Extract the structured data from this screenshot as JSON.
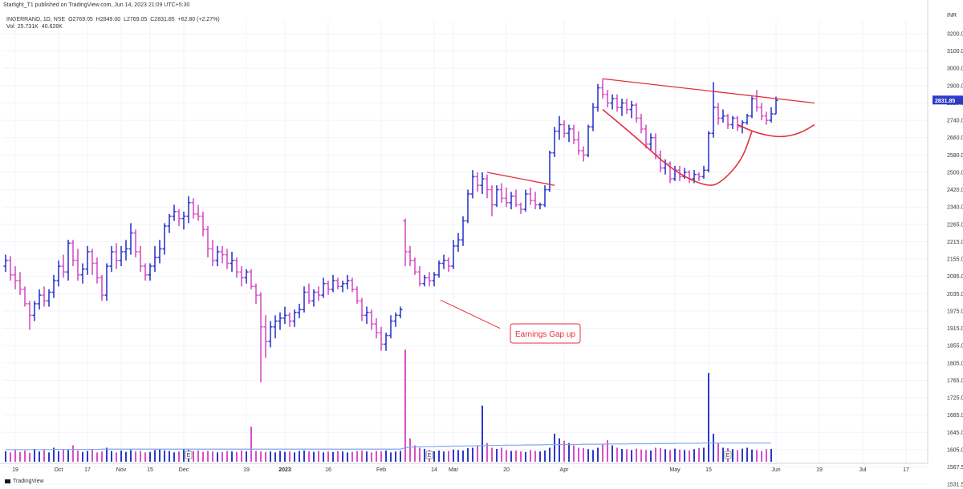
{
  "header": {
    "publish_line": "Starlight_T1 published on TradingView.com, Jun 14, 2023 21:09 UTC+5:30"
  },
  "legend": {
    "symbol": "INGERRAND, 1D, NSE",
    "open": "O2769.05",
    "high": "H2849.00",
    "low": "L2769.05",
    "close": "C2831.85",
    "change": "+62.80 (+2.27%)",
    "vol_label": "Vol",
    "vol_value": "25.731K",
    "vol_ma": "40.628K"
  },
  "footer": {
    "brand": "TradingView"
  },
  "colors": {
    "up": "#2e39c9",
    "down": "#d651c4",
    "trend": "#e3313d",
    "vol_ma": "#7ea9ee",
    "grid": "#f0f3fa"
  },
  "chart_data": {
    "type": "ohlc-bar",
    "currency": "INR",
    "price_axis": {
      "ticks": [
        3200,
        3100,
        3000,
        2900,
        2820,
        2740,
        2660,
        2580,
        2500,
        2420,
        2340,
        2265,
        2215,
        2155,
        2095,
        2035,
        1975,
        1915,
        1855,
        1805,
        1765,
        1725,
        1685,
        1645,
        1605,
        1567.5,
        1531.5
      ],
      "tick_labels": [
        "3200.00",
        "3100.00",
        "3000.00",
        "2900.00",
        "2820.00",
        "2740.00",
        "2660.00",
        "2580.00",
        "2500.00",
        "2420.00",
        "2340.00",
        "2265.00",
        "2215.00",
        "2155.00",
        "2095.00",
        "2035.00",
        "1975.00",
        "1915.00",
        "1855.00",
        "1805.00",
        "1765.00",
        "1725.00",
        "1685.00",
        "1645.00",
        "1605.00",
        "1567.50",
        "1531.50"
      ],
      "last_price": 2831.85,
      "last_price_label": "2831.85",
      "unit_label": "INR"
    },
    "time_axis": {
      "labels": [
        {
          "text": "19",
          "idx": 2
        },
        {
          "text": "Oct",
          "idx": 11
        },
        {
          "text": "17",
          "idx": 17
        },
        {
          "text": "Nov",
          "idx": 24
        },
        {
          "text": "15",
          "idx": 30
        },
        {
          "text": "Dec",
          "idx": 37
        },
        {
          "text": "19",
          "idx": 50
        },
        {
          "text": "2023",
          "idx": 58
        },
        {
          "text": "16",
          "idx": 67
        },
        {
          "text": "Feb",
          "idx": 78
        },
        {
          "text": "14",
          "idx": 89
        },
        {
          "text": "Mar",
          "idx": 93
        },
        {
          "text": "20",
          "idx": 104
        },
        {
          "text": "Apr",
          "idx": 116
        },
        {
          "text": "May",
          "idx": 139
        },
        {
          "text": "15",
          "idx": 146
        },
        {
          "text": "Jun",
          "idx": 160
        },
        {
          "text": "19",
          "idx": 169
        },
        {
          "text": "Jul",
          "idx": 178
        },
        {
          "text": "17",
          "idx": 187
        }
      ]
    },
    "bars": [
      [
        2130,
        2170,
        2110,
        2150
      ],
      [
        2150,
        2165,
        2080,
        2100
      ],
      [
        2100,
        2130,
        2050,
        2080
      ],
      [
        2080,
        2110,
        2030,
        2050
      ],
      [
        2050,
        2060,
        1990,
        2000
      ],
      [
        2000,
        2010,
        1910,
        1960
      ],
      [
        1960,
        2010,
        1940,
        2000
      ],
      [
        2000,
        2050,
        1980,
        2030
      ],
      [
        2030,
        2060,
        1990,
        2010
      ],
      [
        2010,
        2050,
        1990,
        2040
      ],
      [
        2040,
        2100,
        2020,
        2080
      ],
      [
        2080,
        2150,
        2060,
        2130
      ],
      [
        2130,
        2170,
        2090,
        2110
      ],
      [
        2110,
        2220,
        2080,
        2210
      ],
      [
        2210,
        2220,
        2130,
        2150
      ],
      [
        2150,
        2190,
        2080,
        2100
      ],
      [
        2100,
        2140,
        2070,
        2120
      ],
      [
        2120,
        2200,
        2100,
        2180
      ],
      [
        2180,
        2190,
        2100,
        2140
      ],
      [
        2140,
        2160,
        2070,
        2090
      ],
      [
        2090,
        2100,
        2010,
        2030
      ],
      [
        2030,
        2140,
        2010,
        2130
      ],
      [
        2130,
        2200,
        2110,
        2180
      ],
      [
        2180,
        2210,
        2120,
        2150
      ],
      [
        2150,
        2200,
        2130,
        2180
      ],
      [
        2180,
        2220,
        2150,
        2190
      ],
      [
        2190,
        2270,
        2170,
        2240
      ],
      [
        2240,
        2250,
        2160,
        2180
      ],
      [
        2180,
        2200,
        2110,
        2130
      ],
      [
        2130,
        2140,
        2080,
        2100
      ],
      [
        2100,
        2140,
        2080,
        2130
      ],
      [
        2130,
        2200,
        2110,
        2160
      ],
      [
        2160,
        2220,
        2140,
        2190
      ],
      [
        2190,
        2270,
        2170,
        2260
      ],
      [
        2260,
        2310,
        2240,
        2300
      ],
      [
        2300,
        2350,
        2280,
        2320
      ],
      [
        2320,
        2330,
        2260,
        2290
      ],
      [
        2290,
        2320,
        2250,
        2300
      ],
      [
        2300,
        2390,
        2270,
        2360
      ],
      [
        2360,
        2380,
        2290,
        2310
      ],
      [
        2310,
        2350,
        2280,
        2300
      ],
      [
        2300,
        2320,
        2230,
        2250
      ],
      [
        2250,
        2260,
        2160,
        2190
      ],
      [
        2190,
        2220,
        2130,
        2150
      ],
      [
        2150,
        2200,
        2130,
        2180
      ],
      [
        2180,
        2200,
        2140,
        2170
      ],
      [
        2170,
        2190,
        2120,
        2140
      ],
      [
        2140,
        2180,
        2110,
        2150
      ],
      [
        2150,
        2160,
        2090,
        2110
      ],
      [
        2110,
        2130,
        2060,
        2090
      ],
      [
        2090,
        2120,
        2070,
        2110
      ],
      [
        2110,
        2120,
        2050,
        2060
      ],
      [
        2060,
        2070,
        2000,
        2030
      ],
      [
        2030,
        2040,
        1760,
        1920
      ],
      [
        1920,
        1960,
        1820,
        1870
      ],
      [
        1870,
        1940,
        1850,
        1920
      ],
      [
        1920,
        1960,
        1880,
        1940
      ],
      [
        1940,
        1970,
        1910,
        1950
      ],
      [
        1950,
        1990,
        1930,
        1960
      ],
      [
        1960,
        1970,
        1920,
        1940
      ],
      [
        1940,
        1980,
        1920,
        1970
      ],
      [
        1970,
        2000,
        1950,
        1980
      ],
      [
        1980,
        2060,
        1970,
        2040
      ],
      [
        2040,
        2070,
        2000,
        2010
      ],
      [
        2010,
        2050,
        1990,
        2040
      ],
      [
        2040,
        2060,
        2010,
        2030
      ],
      [
        2030,
        2090,
        2020,
        2070
      ],
      [
        2070,
        2080,
        2030,
        2050
      ],
      [
        2050,
        2100,
        2040,
        2080
      ],
      [
        2080,
        2090,
        2050,
        2060
      ],
      [
        2060,
        2080,
        2040,
        2070
      ],
      [
        2070,
        2100,
        2050,
        2080
      ],
      [
        2080,
        2090,
        2040,
        2050
      ],
      [
        2050,
        2060,
        2000,
        2010
      ],
      [
        2010,
        2020,
        1940,
        1960
      ],
      [
        1960,
        1990,
        1930,
        1970
      ],
      [
        1970,
        1980,
        1910,
        1930
      ],
      [
        1930,
        1950,
        1880,
        1900
      ],
      [
        1900,
        1920,
        1840,
        1860
      ],
      [
        1860,
        1900,
        1840,
        1890
      ],
      [
        1890,
        1960,
        1880,
        1940
      ],
      [
        1940,
        1970,
        1920,
        1960
      ],
      [
        1960,
        1990,
        1950,
        1980
      ],
      [
        2280,
        2290,
        2130,
        2180
      ],
      [
        2180,
        2200,
        2130,
        2150
      ],
      [
        2150,
        2160,
        2100,
        2110
      ],
      [
        2110,
        2130,
        2060,
        2070
      ],
      [
        2070,
        2100,
        2060,
        2090
      ],
      [
        2090,
        2110,
        2060,
        2080
      ],
      [
        2080,
        2110,
        2060,
        2100
      ],
      [
        2100,
        2150,
        2090,
        2140
      ],
      [
        2140,
        2170,
        2120,
        2150
      ],
      [
        2150,
        2160,
        2110,
        2130
      ],
      [
        2130,
        2220,
        2120,
        2200
      ],
      [
        2200,
        2240,
        2180,
        2220
      ],
      [
        2220,
        2300,
        2200,
        2280
      ],
      [
        2280,
        2420,
        2270,
        2400
      ],
      [
        2400,
        2510,
        2380,
        2480
      ],
      [
        2480,
        2500,
        2410,
        2440
      ],
      [
        2440,
        2500,
        2400,
        2470
      ],
      [
        2470,
        2490,
        2380,
        2420
      ],
      [
        2420,
        2440,
        2300,
        2350
      ],
      [
        2350,
        2440,
        2340,
        2420
      ],
      [
        2420,
        2450,
        2360,
        2380
      ],
      [
        2380,
        2430,
        2340,
        2360
      ],
      [
        2360,
        2410,
        2330,
        2390
      ],
      [
        2390,
        2420,
        2340,
        2350
      ],
      [
        2350,
        2360,
        2310,
        2330
      ],
      [
        2330,
        2420,
        2320,
        2400
      ],
      [
        2400,
        2430,
        2350,
        2370
      ],
      [
        2370,
        2410,
        2330,
        2350
      ],
      [
        2350,
        2360,
        2330,
        2350
      ],
      [
        2350,
        2440,
        2340,
        2420
      ],
      [
        2420,
        2600,
        2410,
        2590
      ],
      [
        2590,
        2710,
        2570,
        2690
      ],
      [
        2690,
        2760,
        2650,
        2720
      ],
      [
        2720,
        2740,
        2660,
        2680
      ],
      [
        2680,
        2720,
        2640,
        2700
      ],
      [
        2700,
        2720,
        2630,
        2650
      ],
      [
        2650,
        2690,
        2580,
        2600
      ],
      [
        2600,
        2620,
        2550,
        2580
      ],
      [
        2580,
        2720,
        2570,
        2710
      ],
      [
        2710,
        2820,
        2690,
        2800
      ],
      [
        2800,
        2910,
        2780,
        2890
      ],
      [
        2890,
        2940,
        2840,
        2860
      ],
      [
        2860,
        2880,
        2800,
        2820
      ],
      [
        2820,
        2860,
        2790,
        2840
      ],
      [
        2840,
        2860,
        2780,
        2800
      ],
      [
        2800,
        2840,
        2760,
        2820
      ],
      [
        2820,
        2840,
        2770,
        2790
      ],
      [
        2790,
        2830,
        2750,
        2810
      ],
      [
        2810,
        2820,
        2730,
        2750
      ],
      [
        2750,
        2770,
        2680,
        2700
      ],
      [
        2700,
        2720,
        2610,
        2630
      ],
      [
        2630,
        2680,
        2600,
        2660
      ],
      [
        2660,
        2680,
        2560,
        2580
      ],
      [
        2580,
        2600,
        2500,
        2520
      ],
      [
        2520,
        2560,
        2490,
        2540
      ],
      [
        2540,
        2550,
        2450,
        2470
      ],
      [
        2470,
        2530,
        2460,
        2510
      ],
      [
        2510,
        2530,
        2460,
        2480
      ],
      [
        2480,
        2520,
        2470,
        2500
      ],
      [
        2500,
        2510,
        2450,
        2470
      ],
      [
        2470,
        2510,
        2450,
        2490
      ],
      [
        2490,
        2500,
        2460,
        2480
      ],
      [
        2480,
        2530,
        2470,
        2510
      ],
      [
        2510,
        2690,
        2500,
        2680
      ],
      [
        2680,
        2920,
        2660,
        2800
      ],
      [
        2800,
        2820,
        2720,
        2750
      ],
      [
        2750,
        2790,
        2730,
        2760
      ],
      [
        2760,
        2770,
        2700,
        2720
      ],
      [
        2720,
        2760,
        2700,
        2750
      ],
      [
        2750,
        2760,
        2690,
        2710
      ],
      [
        2710,
        2740,
        2680,
        2730
      ],
      [
        2730,
        2770,
        2720,
        2760
      ],
      [
        2760,
        2850,
        2750,
        2840
      ],
      [
        2840,
        2880,
        2780,
        2800
      ],
      [
        2800,
        2820,
        2740,
        2760
      ],
      [
        2760,
        2780,
        2720,
        2740
      ],
      [
        2740,
        2800,
        2730,
        2770
      ],
      [
        2769.05,
        2849,
        2769.05,
        2831.85
      ]
    ],
    "volume": [
      45,
      40,
      50,
      42,
      48,
      38,
      55,
      44,
      50,
      40,
      60,
      45,
      52,
      50,
      70,
      48,
      42,
      46,
      55,
      40,
      44,
      60,
      46,
      40,
      48,
      42,
      50,
      44,
      46,
      40,
      42,
      50,
      52,
      48,
      46,
      40,
      44,
      55,
      50,
      46,
      48,
      42,
      46,
      44,
      40,
      42,
      46,
      44,
      42,
      48,
      44,
      150,
      46,
      44,
      42,
      44,
      40,
      46,
      42,
      44,
      40,
      46,
      48,
      44,
      42,
      46,
      40,
      44,
      42,
      46,
      44,
      40,
      42,
      46,
      48,
      44,
      40,
      46,
      44,
      48,
      40,
      44,
      46,
      480,
      100,
      70,
      60,
      55,
      50,
      45,
      48,
      44,
      46,
      52,
      50,
      48,
      58,
      60,
      70,
      240,
      80,
      60,
      55,
      60,
      50,
      46,
      48,
      44,
      42,
      50,
      46,
      44,
      48,
      60,
      120,
      100,
      90,
      80,
      70,
      60,
      58,
      54,
      50,
      60,
      75,
      92,
      70,
      60,
      55,
      54,
      50,
      56,
      52,
      50,
      48,
      60,
      58,
      54,
      50,
      56,
      52,
      50,
      48,
      54,
      58,
      60,
      380,
      120,
      80,
      60,
      58,
      54,
      50,
      56,
      60,
      52,
      50,
      46,
      54,
      55
    ],
    "volume_ma": [
      52,
      52,
      52,
      52,
      52,
      52,
      52,
      52,
      52,
      52,
      53,
      53,
      53,
      53,
      53,
      53,
      53,
      53,
      53,
      53,
      54,
      54,
      54,
      54,
      54,
      54,
      54,
      54,
      54,
      54,
      54,
      54,
      54,
      54,
      54,
      54,
      54,
      54,
      54,
      54,
      54,
      54,
      54,
      54,
      54,
      54,
      54,
      54,
      54,
      54,
      54,
      54,
      54,
      54,
      54,
      54,
      54,
      54,
      54,
      54,
      54,
      54,
      54,
      54,
      54,
      54,
      54,
      54,
      54,
      54,
      54,
      54,
      54,
      54,
      54,
      54,
      54,
      54,
      54,
      54,
      54,
      54,
      54,
      60,
      62,
      63,
      64,
      64,
      65,
      65,
      66,
      66,
      66,
      67,
      67,
      67,
      68,
      68,
      68,
      69,
      69,
      70,
      70,
      70,
      71,
      71,
      71,
      71,
      72,
      72,
      72,
      72,
      73,
      73,
      73,
      73,
      74,
      74,
      74,
      74,
      75,
      75,
      75,
      75,
      75,
      76,
      76,
      76,
      76,
      76,
      77,
      77,
      77,
      77,
      77,
      78,
      78,
      78,
      78,
      78,
      79,
      79,
      79,
      79,
      79,
      80,
      80,
      80,
      80,
      80,
      80,
      80,
      80,
      80,
      80,
      80,
      80,
      80,
      80,
      80
    ],
    "volume_axis": {
      "max": 480
    },
    "earnings_markers": [
      {
        "idx": 38,
        "text": "E"
      },
      {
        "idx": 88,
        "text": "E"
      },
      {
        "idx": 150,
        "text": "E"
      }
    ],
    "annotations": {
      "callout_text": "Earnings Gap up",
      "gap_arrow": {
        "from": {
          "idx": 96,
          "price": 1915
        },
        "to": {
          "idx": 88,
          "price": 2035
        }
      },
      "trend_lines": [
        {
          "from": {
            "idx": 100,
            "price": 2500
          },
          "to": {
            "idx": 114,
            "price": 2440
          }
        },
        {
          "from": {
            "idx": 124,
            "price": 2940
          },
          "to": {
            "idx": 168,
            "price": 2820
          }
        }
      ],
      "cup_curves": [
        {
          "points": [
            [
              124,
              2790
            ],
            [
              131,
              2660
            ],
            [
              139,
              2500
            ],
            [
              146,
              2430
            ],
            [
              149,
              2460
            ],
            [
              153,
              2560
            ],
            [
              155,
              2690
            ]
          ]
        },
        {
          "points": [
            [
              152,
              2720
            ],
            [
              156,
              2680
            ],
            [
              161,
              2660
            ],
            [
              165,
              2680
            ],
            [
              168,
              2720
            ]
          ]
        }
      ]
    }
  }
}
